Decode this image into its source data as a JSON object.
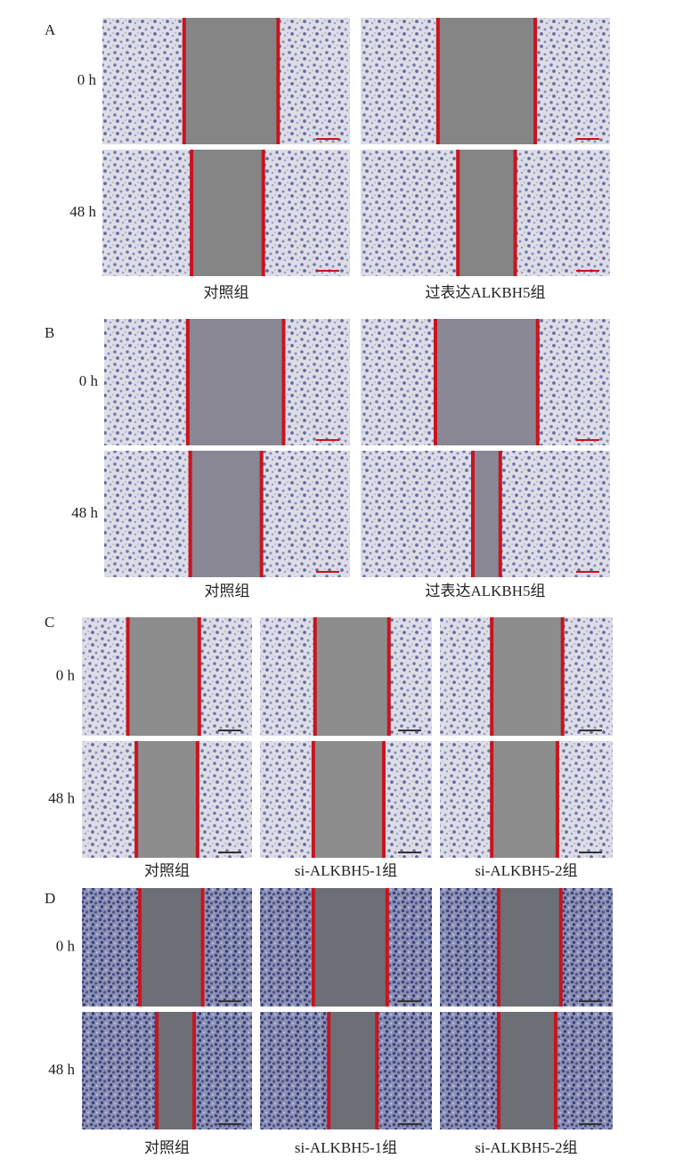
{
  "panels": [
    {
      "label": "A",
      "rows": [
        "0 h",
        "48 h"
      ],
      "columns": [
        "对照组",
        "过表达ALKBH5组"
      ]
    },
    {
      "label": "B",
      "rows": [
        "0 h",
        "48 h"
      ],
      "columns": [
        "对照组",
        "过表达ALKBH5组"
      ]
    },
    {
      "label": "C",
      "rows": [
        "0 h",
        "48 h"
      ],
      "columns": [
        "对照组",
        "si-ALKBH5-1组",
        "si-ALKBH5-2组"
      ]
    },
    {
      "label": "D",
      "rows": [
        "0 h",
        "48 h"
      ],
      "columns": [
        "对照组",
        "si-ALKBH5-1组",
        "si-ALKBH5-2组"
      ]
    }
  ]
}
